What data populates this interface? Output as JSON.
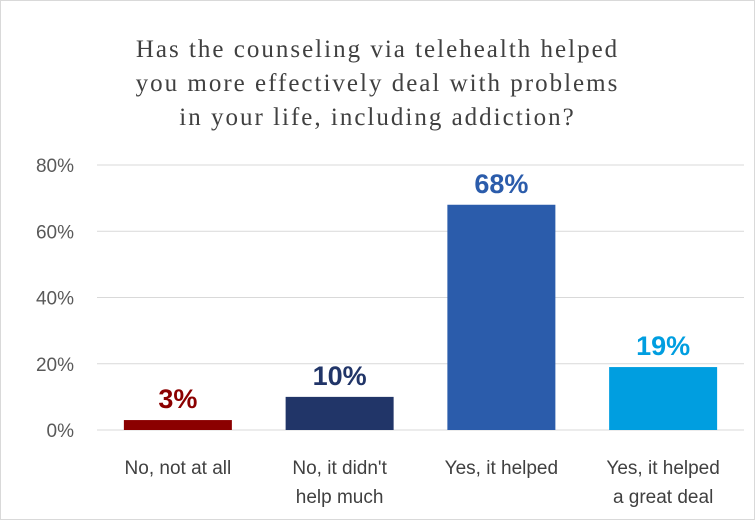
{
  "chart_data": {
    "type": "bar",
    "title": "Has the counseling via telehealth helped you more effectively deal with problems in your life, including addiction?",
    "title_lines": [
      "Has the counseling via telehealth helped",
      "you more effectively deal with problems",
      "in your life, including addiction?"
    ],
    "categories": [
      [
        "No, not at all"
      ],
      [
        "No, it didn't",
        "help much"
      ],
      [
        "Yes, it helped"
      ],
      [
        "Yes, it helped",
        "a great deal"
      ]
    ],
    "values": [
      3,
      10,
      68,
      19
    ],
    "value_labels": [
      "3%",
      "10%",
      "68%",
      "19%"
    ],
    "colors": [
      "#8b0000",
      "#213568",
      "#2b5cab",
      "#009ee0"
    ],
    "ylim": [
      0,
      80
    ],
    "yticks": [
      0,
      20,
      40,
      60,
      80
    ],
    "ytick_labels": [
      "0%",
      "20%",
      "40%",
      "60%",
      "80%"
    ],
    "xlabel": "",
    "ylabel": "",
    "grid": true,
    "legend": "none",
    "gridline_color": "#d9d9d9"
  }
}
